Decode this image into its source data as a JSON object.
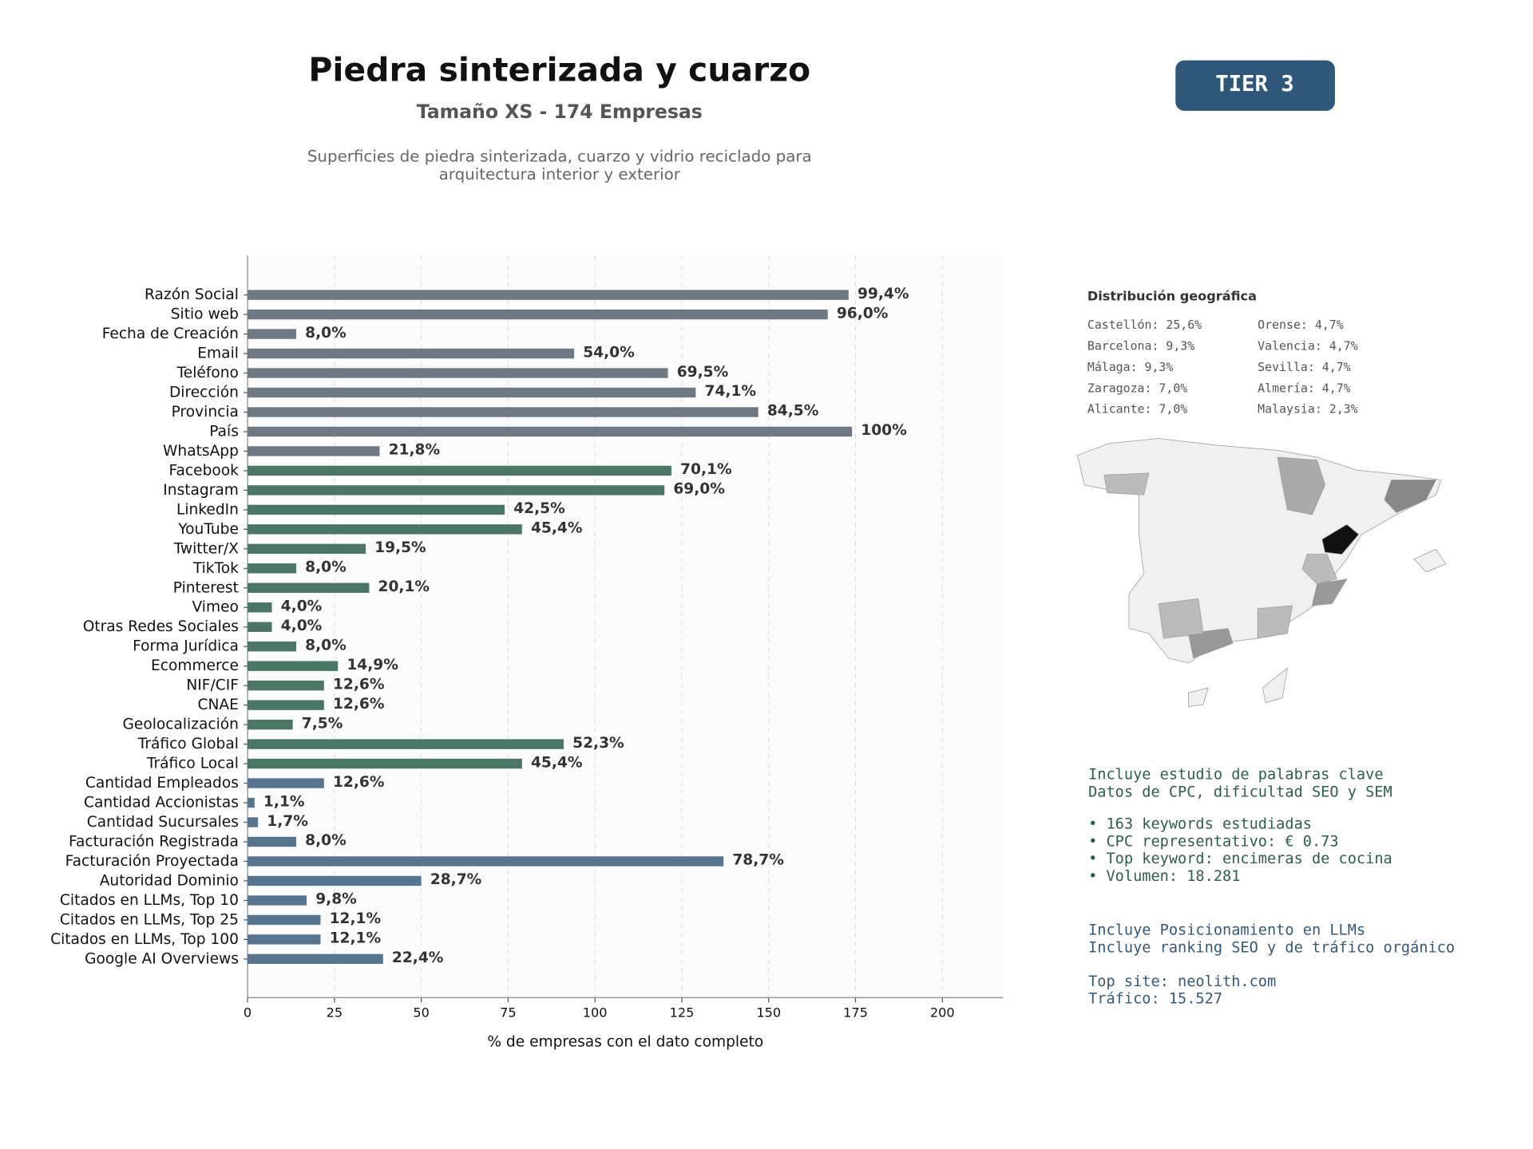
{
  "header": {
    "title": "Piedra sinterizada y cuarzo",
    "subtitle": "Tamaño XS - 174 Empresas",
    "description": [
      "Superficies de piedra sinterizada, cuarzo y vidrio reciclado para",
      "arquitectura interior y exterior"
    ],
    "badge": "TIER 3"
  },
  "chart_data": {
    "type": "bar",
    "orientation": "horizontal",
    "x_label": "% de empresas con el dato completo",
    "categories": [
      "Razón Social",
      "Sitio web",
      "Fecha de Creación",
      "Email",
      "Teléfono",
      "Dirección",
      "Provincia",
      "País",
      "WhatsApp",
      "Facebook",
      "Instagram",
      "LinkedIn",
      "YouTube",
      "Twitter/X",
      "TikTok",
      "Pinterest",
      "Vimeo",
      "Otras Redes Sociales",
      "Forma Jurídica",
      "Ecommerce",
      "NIF/CIF",
      "CNAE",
      "Geolocalización",
      "Tráfico Global",
      "Tráfico Local",
      "Cantidad Empleados",
      "Cantidad Accionistas",
      "Cantidad Sucursales",
      "Facturación Registrada",
      "Facturación Proyectada",
      "Autoridad Dominio",
      "Citados en LLMs, Top 10",
      "Citados en LLMs, Top 25",
      "Citados en LLMs, Top 100",
      "Google AI Overviews"
    ],
    "values": [
      173,
      167,
      14,
      94,
      121,
      129,
      147,
      174,
      38,
      122,
      120,
      74,
      79,
      34,
      14,
      35,
      7,
      7,
      14,
      26,
      22,
      22,
      13,
      91,
      79,
      22,
      2,
      3,
      14,
      137,
      50,
      17,
      21,
      21,
      39
    ],
    "value_labels": [
      "99,4%",
      "96,0%",
      "8,0%",
      "54,0%",
      "69,5%",
      "74,1%",
      "84,5%",
      "100%",
      "21,8%",
      "70,1%",
      "69,0%",
      "42,5%",
      "45,4%",
      "19,5%",
      "8,0%",
      "20,1%",
      "4,0%",
      "4,0%",
      "8,0%",
      "14,9%",
      "12,6%",
      "12,6%",
      "7,5%",
      "52,3%",
      "45,4%",
      "12,6%",
      "1,1%",
      "1,7%",
      "8,0%",
      "78,7%",
      "28,7%",
      "9,8%",
      "12,1%",
      "12,1%",
      "22,4%"
    ],
    "colors": [
      "#6e7983",
      "#6e7983",
      "#6e7983",
      "#6e7983",
      "#6e7983",
      "#6e7983",
      "#6e7983",
      "#6e7983",
      "#6e7983",
      "#4a7665",
      "#4a7665",
      "#4a7665",
      "#4a7665",
      "#4a7665",
      "#4a7665",
      "#4a7665",
      "#4a7665",
      "#4a7665",
      "#4a7665",
      "#4a7665",
      "#4a7665",
      "#4a7665",
      "#4a7665",
      "#4a7665",
      "#4a7665",
      "#587590",
      "#587590",
      "#587590",
      "#587590",
      "#587590",
      "#587590",
      "#587590",
      "#587590",
      "#587590",
      "#587590"
    ],
    "xlim": [
      0,
      217.5
    ],
    "xticks": [
      0,
      25,
      50,
      75,
      100,
      125,
      150,
      175,
      200
    ],
    "grid": true
  },
  "geo": {
    "title": "Distribución geográfica",
    "items": [
      "Castellón: 25,6%",
      "Barcelona: 9,3%",
      "Málaga: 9,3%",
      "Zaragoza: 7,0%",
      "Alicante: 7,0%",
      "Orense: 4,7%",
      "Valencia: 4,7%",
      "Sevilla: 4,7%",
      "Almería: 4,7%",
      "Malaysia: 2,3%"
    ]
  },
  "seo": {
    "lines": [
      "Incluye estudio de palabras clave",
      "Datos de CPC, dificultad SEO y SEM"
    ],
    "bullets": [
      "• 163 keywords estudiadas",
      "• CPC representativo: € 0.73",
      "• Top keyword: encimeras de cocina",
      "• Volumen: 18.281"
    ]
  },
  "llm": {
    "lines": [
      "Incluye Posicionamiento en LLMs",
      "Incluye ranking SEO y de tráfico orgánico"
    ],
    "top": [
      "Top site: neolith.com",
      "Tráfico: 15.527"
    ]
  }
}
